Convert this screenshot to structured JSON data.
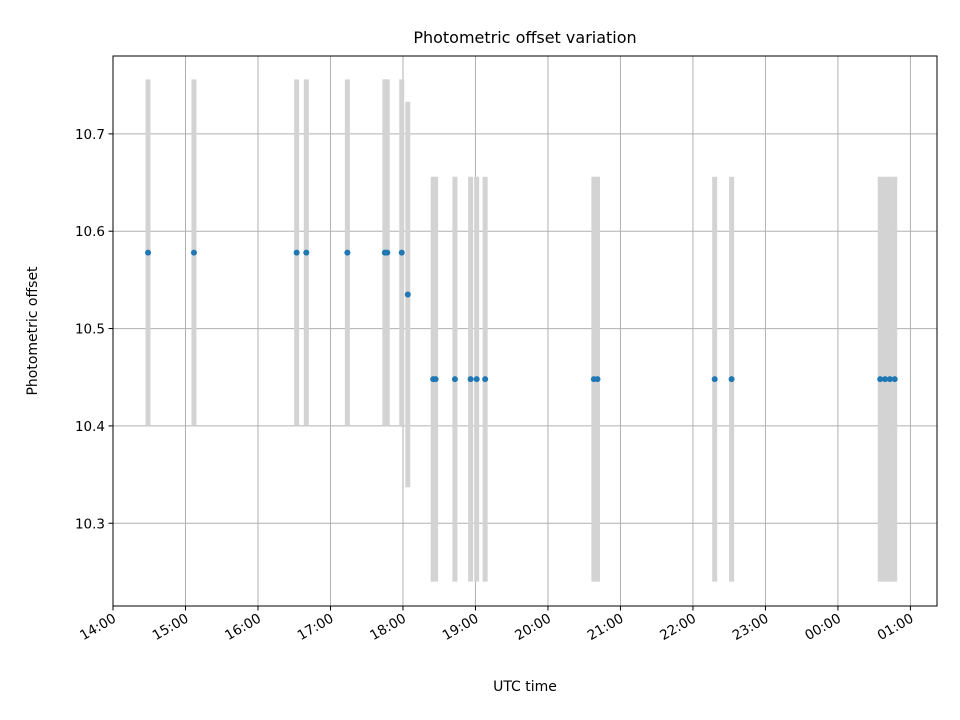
{
  "chart_data": {
    "type": "scatter",
    "title": "Photometric offset variation",
    "xlabel": "UTC time",
    "ylabel": "Photometric offset",
    "grid": true,
    "x_axis_kind": "time",
    "xlim": [
      "14:00",
      "01:22"
    ],
    "ylim": [
      10.215,
      10.78
    ],
    "x_ticks": [
      "14:00",
      "15:00",
      "16:00",
      "17:00",
      "18:00",
      "19:00",
      "20:00",
      "21:00",
      "22:00",
      "23:00",
      "00:00",
      "01:00"
    ],
    "y_ticks": [
      "10.3",
      "10.4",
      "10.5",
      "10.6",
      "10.7"
    ],
    "colors": {
      "points": "#1f77b4",
      "error_bars": "#d3d3d3",
      "grid": "#b0b0b0"
    },
    "points": [
      {
        "x": "14:29",
        "y": 10.578,
        "err": 0.178
      },
      {
        "x": "15:07",
        "y": 10.578,
        "err": 0.178
      },
      {
        "x": "16:32",
        "y": 10.578,
        "err": 0.178
      },
      {
        "x": "16:40",
        "y": 10.578,
        "err": 0.178
      },
      {
        "x": "17:14",
        "y": 10.578,
        "err": 0.178
      },
      {
        "x": "17:45",
        "y": 10.578,
        "err": 0.178
      },
      {
        "x": "17:47",
        "y": 10.578,
        "err": 0.178
      },
      {
        "x": "17:59",
        "y": 10.578,
        "err": 0.178
      },
      {
        "x": "18:04",
        "y": 10.535,
        "err": 0.198
      },
      {
        "x": "18:25",
        "y": 10.448,
        "err": 0.208
      },
      {
        "x": "18:27",
        "y": 10.448,
        "err": 0.208
      },
      {
        "x": "18:43",
        "y": 10.448,
        "err": 0.208
      },
      {
        "x": "18:56",
        "y": 10.448,
        "err": 0.208
      },
      {
        "x": "19:01",
        "y": 10.448,
        "err": 0.208
      },
      {
        "x": "19:08",
        "y": 10.448,
        "err": 0.208
      },
      {
        "x": "20:38",
        "y": 10.448,
        "err": 0.208
      },
      {
        "x": "20:41",
        "y": 10.448,
        "err": 0.208
      },
      {
        "x": "22:18",
        "y": 10.448,
        "err": 0.208
      },
      {
        "x": "22:32",
        "y": 10.448,
        "err": 0.208
      },
      {
        "x": "00:35",
        "y": 10.448,
        "err": 0.208
      },
      {
        "x": "00:39",
        "y": 10.448,
        "err": 0.208
      },
      {
        "x": "00:43",
        "y": 10.448,
        "err": 0.208
      },
      {
        "x": "00:47",
        "y": 10.448,
        "err": 0.208
      }
    ]
  }
}
